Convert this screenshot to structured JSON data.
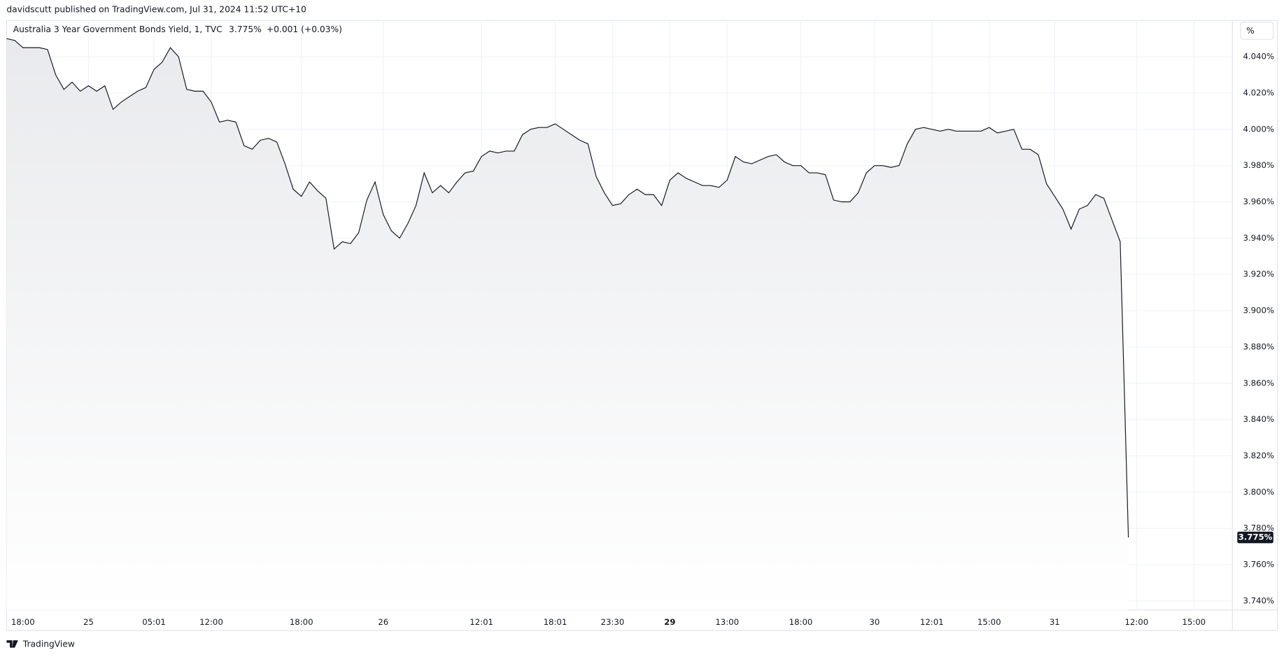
{
  "chart_data": {
    "type": "area",
    "header": "davidscutt published on TradingView.com, Jul 31, 2024 11:52 UTC+10",
    "title": "Australia 3 Year Government Bonds Yield, 1, TVC",
    "last": "3.775%",
    "change": "+0.001 (+0.03%)",
    "unit": "%",
    "footer": "TradingView",
    "color": "#131722",
    "grid": true,
    "ylim": [
      3.735,
      4.06
    ],
    "yticks": [
      {
        "value": 3.74,
        "label": "3.740%"
      },
      {
        "value": 3.76,
        "label": "3.760%"
      },
      {
        "value": 3.78,
        "label": "3.780%"
      },
      {
        "value": 3.8,
        "label": "3.800%"
      },
      {
        "value": 3.82,
        "label": "3.820%"
      },
      {
        "value": 3.84,
        "label": "3.840%"
      },
      {
        "value": 3.86,
        "label": "3.860%"
      },
      {
        "value": 3.88,
        "label": "3.880%"
      },
      {
        "value": 3.9,
        "label": "3.900%"
      },
      {
        "value": 3.92,
        "label": "3.920%"
      },
      {
        "value": 3.94,
        "label": "3.940%"
      },
      {
        "value": 3.96,
        "label": "3.960%"
      },
      {
        "value": 3.98,
        "label": "3.980%"
      },
      {
        "value": 4.0,
        "label": "4.000%"
      },
      {
        "value": 4.02,
        "label": "4.020%"
      },
      {
        "value": 4.04,
        "label": "4.040%"
      }
    ],
    "last_price": {
      "value": 3.775,
      "label": "3.775%"
    },
    "categories": [
      null,
      null,
      "18:00",
      null,
      null,
      null,
      null,
      null,
      null,
      null,
      "25",
      null,
      null,
      null,
      null,
      null,
      null,
      null,
      "05:01",
      null,
      null,
      null,
      null,
      null,
      null,
      "12:00",
      null,
      null,
      null,
      null,
      null,
      null,
      null,
      null,
      null,
      null,
      "18:00",
      null,
      null,
      null,
      null,
      null,
      null,
      null,
      null,
      null,
      "26",
      null,
      null,
      null,
      null,
      null,
      null,
      null,
      null,
      null,
      null,
      null,
      "12:01",
      null,
      null,
      null,
      null,
      null,
      null,
      null,
      null,
      "18:01",
      null,
      null,
      null,
      null,
      null,
      null,
      "23:30",
      null,
      null,
      null,
      null,
      null,
      null,
      "29",
      null,
      null,
      null,
      null,
      null,
      null,
      "13:00",
      null,
      null,
      null,
      null,
      null,
      null,
      null,
      null,
      "18:00",
      null,
      null,
      null,
      null,
      null,
      null,
      null,
      null,
      "30",
      null,
      null,
      null,
      null,
      null,
      null,
      "12:01",
      null,
      null,
      null,
      null,
      null,
      null,
      "15:00",
      null,
      null,
      null,
      null,
      null,
      null,
      null,
      "31",
      null,
      null,
      null,
      null,
      null,
      null,
      null,
      null,
      null,
      "12:00",
      null,
      null,
      null,
      null,
      null,
      null,
      "15:00",
      null,
      null,
      null,
      null
    ],
    "values": [
      4.05,
      4.049,
      4.045,
      4.045,
      4.045,
      4.044,
      4.03,
      4.022,
      4.026,
      4.021,
      4.024,
      4.021,
      4.024,
      4.011,
      4.015,
      4.018,
      4.021,
      4.023,
      4.033,
      4.037,
      4.045,
      4.04,
      4.022,
      4.021,
      4.021,
      4.015,
      4.004,
      4.005,
      4.004,
      3.991,
      3.989,
      3.994,
      3.995,
      3.993,
      3.981,
      3.967,
      3.963,
      3.971,
      3.966,
      3.962,
      3.934,
      3.938,
      3.937,
      3.943,
      3.961,
      3.971,
      3.953,
      3.944,
      3.94,
      3.948,
      3.958,
      3.976,
      3.965,
      3.969,
      3.965,
      3.971,
      3.976,
      3.977,
      3.985,
      3.988,
      3.987,
      3.988,
      3.988,
      3.997,
      4.0,
      4.001,
      4.001,
      4.003,
      4.0,
      3.997,
      3.994,
      3.992,
      3.974,
      3.965,
      3.958,
      3.959,
      3.964,
      3.967,
      3.964,
      3.964,
      3.958,
      3.972,
      3.976,
      3.973,
      3.971,
      3.969,
      3.969,
      3.968,
      3.972,
      3.985,
      3.982,
      3.981,
      3.983,
      3.985,
      3.986,
      3.982,
      3.98,
      3.98,
      3.976,
      3.976,
      3.975,
      3.961,
      3.96,
      3.96,
      3.965,
      3.976,
      3.98,
      3.98,
      3.979,
      3.98,
      3.992,
      4.0,
      4.001,
      4.0,
      3.999,
      4.0,
      3.999,
      3.999,
      3.999,
      3.999,
      4.001,
      3.998,
      3.999,
      4.0,
      3.989,
      3.989,
      3.986,
      3.97,
      3.963,
      3.956,
      3.945,
      3.956,
      3.958,
      3.964,
      3.962,
      3.95,
      3.938,
      3.775,
      null,
      null,
      null,
      null,
      null,
      null,
      null,
      null,
      null,
      null,
      null,
      null
    ]
  }
}
